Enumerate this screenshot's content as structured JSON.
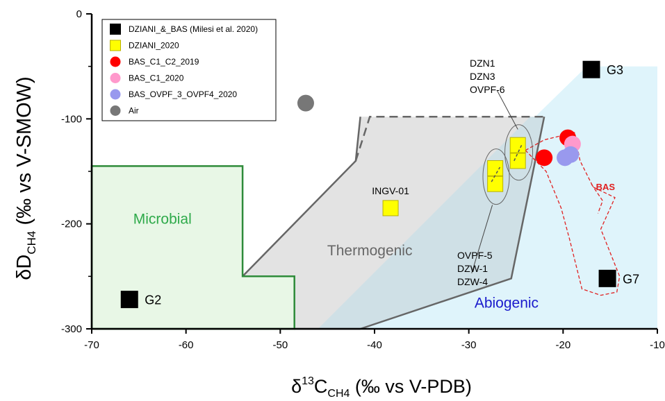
{
  "chart_data": {
    "type": "scatter",
    "xlabel": {
      "main": "δ",
      "sup": "13",
      "mid": "C",
      "sub": "CH4",
      "rest": " (‰ vs V-PDB)"
    },
    "ylabel": {
      "main": "δD",
      "sub": "CH4",
      "rest": " (‰ vs V-SMOW)"
    },
    "xlim": [
      -70,
      -10
    ],
    "ylim": [
      -300,
      0
    ],
    "x_ticks": [
      -70,
      -60,
      -50,
      -40,
      -30,
      -20,
      -10
    ],
    "y_ticks": [
      0,
      -100,
      -200,
      -300
    ],
    "grid": false,
    "legend_position": "top-left",
    "colors": {
      "microbial_fill": "#e8f7e6",
      "microbial_edge": "#2e8b3a",
      "thermogenic_fill": "#e3e3e3",
      "thermogenic_edge": "#666666",
      "abiogenic_fill": "#dff4fb",
      "overlap_fill": "#cfe0e6",
      "bas_outline": "#e02020",
      "microbial_text": "#2eaa4a",
      "thermogenic_text": "#666666",
      "abiogenic_text": "#1a1acc",
      "bas_text": "#e02020"
    },
    "regions": [
      {
        "name": "Microbial",
        "label_at": [
          -62.5,
          -200
        ],
        "polygon": [
          [
            -70,
            -145
          ],
          [
            -54,
            -145
          ],
          [
            -54,
            -250
          ],
          [
            -48.5,
            -250
          ],
          [
            -48.5,
            -300
          ],
          [
            -70,
            -300
          ]
        ]
      },
      {
        "name": "Thermogenic",
        "label_at": [
          -40.5,
          -230
        ],
        "polygon": [
          [
            -54,
            -250
          ],
          [
            -48.5,
            -250
          ],
          [
            -48.5,
            -300
          ],
          [
            -41.5,
            -300
          ],
          [
            -25.5,
            -252
          ],
          [
            -22,
            -98
          ],
          [
            -41.5,
            -98
          ],
          [
            -42,
            -140
          ]
        ]
      },
      {
        "name": "Abiogenic",
        "label_at": [
          -26,
          -280
        ],
        "polygon": [
          [
            -46,
            -300
          ],
          [
            -10,
            -300
          ],
          [
            -10,
            -50
          ],
          [
            -17.5,
            -50
          ]
        ]
      }
    ],
    "series": [
      {
        "name": "DZIANI_&_BAS (Milesi et al. 2020)",
        "marker": "square",
        "color": "#000000",
        "points": [
          {
            "x": -66,
            "y": -272,
            "label": "G2"
          },
          {
            "x": -17,
            "y": -53,
            "label": "G3"
          },
          {
            "x": -15.3,
            "y": -252,
            "label": "G7"
          }
        ]
      },
      {
        "name": "DZIANI_2020",
        "marker": "square",
        "color": "#ffff00",
        "points": [
          {
            "x": -38.3,
            "y": -185,
            "label": "INGV-01"
          },
          {
            "x": -27.2,
            "y": -147
          },
          {
            "x": -27.2,
            "y": -162
          },
          {
            "x": -24.8,
            "y": -125
          },
          {
            "x": -24.8,
            "y": -140
          }
        ]
      },
      {
        "name": "BAS_C1_C2_2019",
        "marker": "circle",
        "color": "#ff0000",
        "points": [
          {
            "x": -22,
            "y": -137
          },
          {
            "x": -19.5,
            "y": -118
          }
        ]
      },
      {
        "name": "BAS_C1_2020",
        "marker": "circle",
        "color": "#ff99cc",
        "points": [
          {
            "x": -19,
            "y": -124
          }
        ]
      },
      {
        "name": "BAS_OVPF_3_OVPF4_2020",
        "marker": "circle",
        "color": "#9999ee",
        "points": [
          {
            "x": -19.2,
            "y": -134
          },
          {
            "x": -19.8,
            "y": -137
          }
        ]
      },
      {
        "name": "Air",
        "marker": "circle",
        "color": "#777777",
        "points": [
          {
            "x": -47.3,
            "y": -85
          }
        ]
      }
    ],
    "annotations": [
      {
        "lines": [
          "DZN1",
          "DZN3",
          "OVPF-6"
        ]
      },
      {
        "lines": [
          "OVPF-5",
          "DZW-1",
          "DZW-4"
        ]
      },
      {
        "text": "BAS"
      }
    ]
  }
}
